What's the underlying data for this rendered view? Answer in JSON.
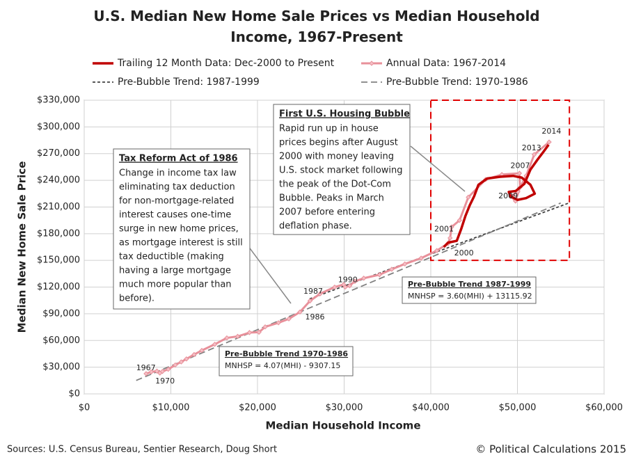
{
  "chart_data": {
    "type": "line",
    "title": "U.S. Median New Home Sale Prices vs Median Household Income, 1967-Present",
    "xlabel": "Median Household Income",
    "ylabel": "Median New Home Sale Price",
    "xlim": [
      0,
      60000
    ],
    "xticks": [
      {
        "value": 0,
        "label": "$0"
      },
      {
        "value": 10000,
        "label": "$10,000"
      },
      {
        "value": 20000,
        "label": "$20,000"
      },
      {
        "value": 30000,
        "label": "$30,000"
      },
      {
        "value": 40000,
        "label": "$40,000"
      },
      {
        "value": 50000,
        "label": "$50,000"
      },
      {
        "value": 60000,
        "label": "$60,000"
      }
    ],
    "ylim": [
      0,
      330000
    ],
    "yticks": [
      {
        "value": 0,
        "label": "$0"
      },
      {
        "value": 30000,
        "label": "$30,000"
      },
      {
        "value": 60000,
        "label": "$60,000"
      },
      {
        "value": 90000,
        "label": "$90,000"
      },
      {
        "value": 120000,
        "label": "$120,000"
      },
      {
        "value": 150000,
        "label": "$150,000"
      },
      {
        "value": 180000,
        "label": "$180,000"
      },
      {
        "value": 210000,
        "label": "$210,000"
      },
      {
        "value": 240000,
        "label": "$240,000"
      },
      {
        "value": 270000,
        "label": "$270,000"
      },
      {
        "value": 300000,
        "label": "$300,000"
      },
      {
        "value": 330000,
        "label": "$330,000"
      }
    ],
    "grid": true,
    "series": [
      {
        "name": "Trailing 12 Month Data: Dec-2000 to Present",
        "color": "#c00000",
        "width": 3.5,
        "dash": "none",
        "marker": false,
        "x": [
          41500,
          42000,
          43000,
          43500,
          44000,
          44500,
          45000,
          45500,
          46500,
          48000,
          49500,
          50500,
          51500,
          52000,
          51000,
          50000,
          49200,
          49000,
          49800,
          50800,
          51500,
          52300,
          53000,
          53600
        ],
        "values": [
          165000,
          170000,
          172000,
          185000,
          200000,
          212000,
          222000,
          235000,
          242000,
          244000,
          245000,
          243000,
          235000,
          225000,
          220000,
          218000,
          222000,
          227000,
          228000,
          236000,
          252000,
          263000,
          272000,
          280000
        ]
      },
      {
        "name": "Annual Data: 1967-2014",
        "color": "#e8909a",
        "width": 3,
        "dash": "none",
        "marker": true,
        "x": [
          7143,
          7743,
          8389,
          8734,
          9028,
          9697,
          10512,
          11197,
          11800,
          12686,
          13572,
          15064,
          16461,
          17710,
          19074,
          20171,
          20885,
          22415,
          23618,
          24897,
          26061,
          27225,
          28906,
          29943,
          30126,
          30636,
          31241,
          32264,
          34076,
          35492,
          37005,
          38885,
          40696,
          41990,
          42228,
          42409,
          43318,
          44334,
          46326,
          48201,
          50233,
          50303,
          49777,
          49276,
          50054,
          51017,
          51939,
          53657
        ],
        "values": [
          22700,
          24700,
          25600,
          23400,
          25200,
          27600,
          32500,
          35900,
          39300,
          44200,
          48800,
          55700,
          62900,
          64600,
          68900,
          69300,
          75300,
          79900,
          84300,
          92000,
          104500,
          112500,
          120000,
          122900,
          120000,
          121500,
          126500,
          130000,
          133900,
          140000,
          146000,
          152500,
          161000,
          169000,
          175200,
          187600,
          195000,
          221000,
          240900,
          246500,
          247900,
          232100,
          216700,
          221800,
          227200,
          245200,
          268900,
          283000
        ]
      },
      {
        "name": "Pre-Bubble Trend: 1987-1999",
        "color": "#404040",
        "width": 1.8,
        "dash": "4 3",
        "marker": false,
        "x": [
          26000,
          56000
        ],
        "values": [
          106716,
          214716
        ]
      },
      {
        "name": "Pre-Bubble Trend: 1970-1986",
        "color": "#808080",
        "width": 1.8,
        "dash": "9 5",
        "marker": false,
        "x": [
          6000,
          55000
        ],
        "values": [
          15113,
          214543
        ]
      }
    ],
    "year_labels": [
      {
        "label": "1967",
        "x": 6000,
        "y": 29000
      },
      {
        "label": "1970",
        "x": 8200,
        "y": 14000
      },
      {
        "label": "1986",
        "x": 25500,
        "y": 86000
      },
      {
        "label": "1987",
        "x": 25300,
        "y": 115000
      },
      {
        "label": "1990",
        "x": 29300,
        "y": 128000
      },
      {
        "label": "2000",
        "x": 42700,
        "y": 158000
      },
      {
        "label": "2001",
        "x": 40400,
        "y": 185000
      },
      {
        "label": "2007",
        "x": 49200,
        "y": 256000
      },
      {
        "label": "2009",
        "x": 47800,
        "y": 222000
      },
      {
        "label": "2013",
        "x": 50500,
        "y": 276000
      },
      {
        "label": "2014",
        "x": 52800,
        "y": 295000
      }
    ],
    "highlight": {
      "xlim": [
        40000,
        56000
      ],
      "ylim": [
        150000,
        330000
      ],
      "color": "#e00000"
    },
    "notes": [
      {
        "title": "Tax Reform Act of 1986",
        "lines": [
          "Change in income tax law",
          "eliminating tax deduction",
          "for non-mortgage-related",
          "interest causes one-time",
          "surge in new home  prices,",
          "as mortgage interest is still",
          "tax deductible (making",
          "having a large mortgage",
          "much more popular than",
          "before)."
        ]
      },
      {
        "title": "First U.S. Housing Bubble",
        "lines": [
          "Rapid run up in house",
          "prices begins after August",
          "2000 with money leaving",
          "U.S. stock market following",
          "the peak of the Dot-Com",
          "Bubble.  Peaks in March",
          "2007 before entering",
          "deflation phase."
        ]
      }
    ],
    "trend_boxes": [
      {
        "title": "Pre-Bubble Trend 1987-1999",
        "text": "MNHSP = 3.60(MHI) + 13115.92"
      },
      {
        "title": "Pre-Bubble Trend 1970-1986",
        "text": "MNHSP = 4.07(MHI) - 9307.15"
      }
    ],
    "sources": "Sources: U.S. Census Bureau, Sentier Research, Doug Short",
    "copyright": "© Political Calculations 2015"
  }
}
